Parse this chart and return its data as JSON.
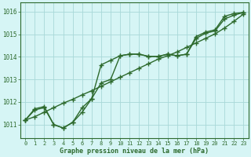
{
  "hours": [
    0,
    1,
    2,
    3,
    4,
    5,
    6,
    7,
    8,
    9,
    10,
    11,
    12,
    13,
    14,
    15,
    16,
    17,
    18,
    19,
    20,
    21,
    22,
    23
  ],
  "line1_y": [
    1011.2,
    1011.7,
    1011.8,
    1011.0,
    1010.85,
    1011.1,
    1011.55,
    1012.15,
    1012.85,
    1013.0,
    1014.05,
    1014.12,
    1014.12,
    1014.02,
    1014.02,
    1014.12,
    1014.05,
    1014.12,
    1014.9,
    1015.1,
    1015.2,
    1015.8,
    1015.92,
    1015.97
  ],
  "line2_y": [
    1011.2,
    1011.65,
    1011.75,
    1011.0,
    1010.85,
    1011.1,
    1011.75,
    1012.15,
    1013.65,
    1013.85,
    1014.05,
    1014.12,
    1014.12,
    1014.02,
    1014.02,
    1014.12,
    1014.05,
    1014.12,
    1014.82,
    1015.05,
    1015.15,
    1015.68,
    1015.85,
    1015.97
  ],
  "line3_y": [
    1011.2,
    1011.35,
    1011.55,
    1011.75,
    1011.95,
    1012.12,
    1012.32,
    1012.5,
    1012.7,
    1012.9,
    1013.1,
    1013.3,
    1013.5,
    1013.7,
    1013.9,
    1014.05,
    1014.22,
    1014.42,
    1014.62,
    1014.82,
    1015.02,
    1015.28,
    1015.58,
    1015.9
  ],
  "line_color": "#2d6a2d",
  "bg_color": "#d6f5f5",
  "grid_color": "#a8d8d8",
  "xlabel": "Graphe pression niveau de la mer (hPa)",
  "ylim_min": 1010.4,
  "ylim_max": 1016.4,
  "yticks": [
    1011,
    1012,
    1013,
    1014,
    1015,
    1016
  ],
  "linewidth": 1.0,
  "markersize": 4,
  "markeredgewidth": 1.0
}
